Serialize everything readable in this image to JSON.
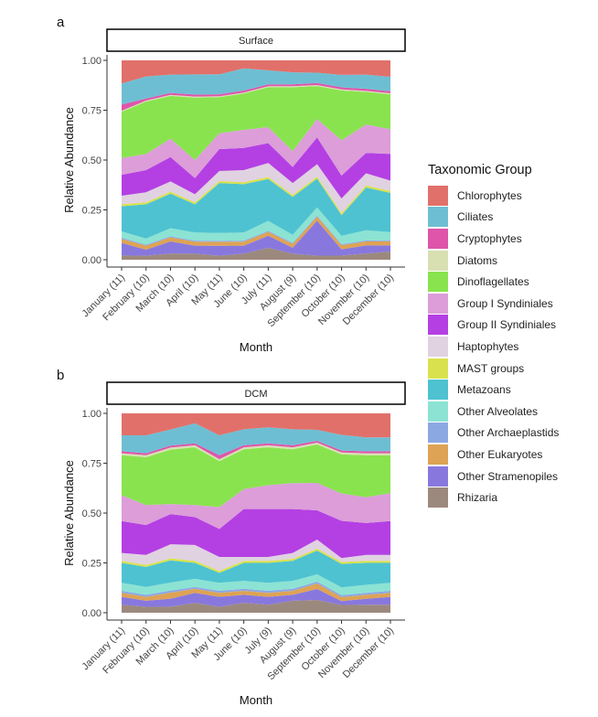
{
  "chart_data": [
    {
      "type": "area",
      "panel_label": "a",
      "strip_title": "Surface",
      "xlabel": "Month",
      "ylabel": "Relative Abundance",
      "ylim": [
        0,
        1
      ],
      "yticks": [
        "0.00",
        "0.25",
        "0.50",
        "0.75",
        "1.00"
      ],
      "categories": [
        "January (11)",
        "February (10)",
        "March (10)",
        "April (10)",
        "May (11)",
        "June (10)",
        "July (11)",
        "August (9)",
        "September (10)",
        "October (10)",
        "November (10)",
        "December (10)"
      ],
      "series": [
        {
          "name": "Rhizaria",
          "values": [
            0.02,
            0.02,
            0.03,
            0.03,
            0.02,
            0.03,
            0.06,
            0.03,
            0.02,
            0.02,
            0.03,
            0.04
          ]
        },
        {
          "name": "Other Stramenopiles",
          "values": [
            0.06,
            0.03,
            0.06,
            0.04,
            0.05,
            0.04,
            0.06,
            0.03,
            0.17,
            0.03,
            0.04,
            0.03
          ]
        },
        {
          "name": "Other Eukaryotes",
          "values": [
            0.02,
            0.02,
            0.02,
            0.02,
            0.02,
            0.02,
            0.02,
            0.02,
            0.02,
            0.02,
            0.02,
            0.02
          ]
        },
        {
          "name": "Other Archaeplastids",
          "values": [
            0.005,
            0.005,
            0.005,
            0.005,
            0.005,
            0.005,
            0.005,
            0.005,
            0.005,
            0.005,
            0.005,
            0.005
          ]
        },
        {
          "name": "Other Alveolates",
          "values": [
            0.03,
            0.03,
            0.04,
            0.04,
            0.04,
            0.04,
            0.05,
            0.04,
            0.04,
            0.04,
            0.05,
            0.04
          ]
        },
        {
          "name": "Metazoans",
          "values": [
            0.12,
            0.17,
            0.17,
            0.14,
            0.25,
            0.24,
            0.21,
            0.19,
            0.14,
            0.1,
            0.21,
            0.19
          ]
        },
        {
          "name": "MAST groups",
          "values": [
            0.01,
            0.01,
            0.01,
            0.01,
            0.01,
            0.01,
            0.01,
            0.01,
            0.01,
            0.01,
            0.01,
            0.01
          ]
        },
        {
          "name": "Haptophytes",
          "values": [
            0.04,
            0.05,
            0.05,
            0.04,
            0.05,
            0.06,
            0.07,
            0.06,
            0.06,
            0.07,
            0.06,
            0.05
          ]
        },
        {
          "name": "Group II Syndiniales",
          "values": [
            0.1,
            0.11,
            0.12,
            0.08,
            0.11,
            0.11,
            0.1,
            0.08,
            0.13,
            0.11,
            0.1,
            0.13
          ]
        },
        {
          "name": "Group I Syndiniales",
          "values": [
            0.08,
            0.08,
            0.09,
            0.09,
            0.08,
            0.09,
            0.08,
            0.08,
            0.09,
            0.17,
            0.14,
            0.12
          ]
        },
        {
          "name": "Dinoflagellates",
          "values": [
            0.22,
            0.26,
            0.21,
            0.31,
            0.18,
            0.18,
            0.2,
            0.32,
            0.16,
            0.24,
            0.16,
            0.17
          ]
        },
        {
          "name": "Diatoms",
          "values": [
            0.005,
            0.005,
            0.005,
            0.005,
            0.005,
            0.005,
            0.005,
            0.005,
            0.005,
            0.005,
            0.005,
            0.005
          ]
        },
        {
          "name": "Cryptophytes",
          "values": [
            0.03,
            0.01,
            0.01,
            0.01,
            0.01,
            0.01,
            0.01,
            0.01,
            0.01,
            0.01,
            0.01,
            0.01
          ]
        },
        {
          "name": "Ciliates",
          "values": [
            0.1,
            0.11,
            0.09,
            0.1,
            0.1,
            0.11,
            0.07,
            0.06,
            0.05,
            0.06,
            0.07,
            0.07
          ]
        },
        {
          "name": "Chlorophytes",
          "values": [
            0.11,
            0.08,
            0.07,
            0.07,
            0.07,
            0.04,
            0.05,
            0.06,
            0.06,
            0.07,
            0.07,
            0.08
          ]
        }
      ]
    },
    {
      "type": "area",
      "panel_label": "b",
      "strip_title": "DCM",
      "xlabel": "Month",
      "ylabel": "Relative Abundance",
      "ylim": [
        0,
        1
      ],
      "yticks": [
        "0.00",
        "0.25",
        "0.50",
        "0.75",
        "1.00"
      ],
      "categories": [
        "January (11)",
        "February (10)",
        "March (10)",
        "April (10)",
        "May (11)",
        "June (10)",
        "July (9)",
        "August (9)",
        "September (10)",
        "October (10)",
        "November (10)",
        "December (10)"
      ],
      "series": [
        {
          "name": "Rhizaria",
          "values": [
            0.04,
            0.03,
            0.03,
            0.05,
            0.03,
            0.05,
            0.04,
            0.06,
            0.07,
            0.04,
            0.04,
            0.04
          ]
        },
        {
          "name": "Other Stramenopiles",
          "values": [
            0.04,
            0.03,
            0.04,
            0.05,
            0.05,
            0.04,
            0.04,
            0.03,
            0.06,
            0.02,
            0.03,
            0.04
          ]
        },
        {
          "name": "Other Eukaryotes",
          "values": [
            0.02,
            0.02,
            0.03,
            0.02,
            0.02,
            0.02,
            0.02,
            0.02,
            0.03,
            0.02,
            0.02,
            0.02
          ]
        },
        {
          "name": "Other Archaeplastids",
          "values": [
            0.01,
            0.01,
            0.01,
            0.01,
            0.01,
            0.01,
            0.01,
            0.01,
            0.01,
            0.01,
            0.01,
            0.01
          ]
        },
        {
          "name": "Other Alveolates",
          "values": [
            0.04,
            0.04,
            0.04,
            0.04,
            0.04,
            0.04,
            0.04,
            0.04,
            0.04,
            0.04,
            0.04,
            0.04
          ]
        },
        {
          "name": "Metazoans",
          "values": [
            0.1,
            0.1,
            0.11,
            0.08,
            0.05,
            0.09,
            0.1,
            0.1,
            0.13,
            0.12,
            0.11,
            0.1
          ]
        },
        {
          "name": "MAST groups",
          "values": [
            0.01,
            0.01,
            0.01,
            0.01,
            0.01,
            0.01,
            0.01,
            0.01,
            0.01,
            0.01,
            0.01,
            0.01
          ]
        },
        {
          "name": "Haptophytes",
          "values": [
            0.04,
            0.05,
            0.07,
            0.08,
            0.07,
            0.02,
            0.02,
            0.03,
            0.05,
            0.02,
            0.03,
            0.03
          ]
        },
        {
          "name": "Group II Syndiniales",
          "values": [
            0.16,
            0.15,
            0.15,
            0.14,
            0.14,
            0.24,
            0.24,
            0.22,
            0.16,
            0.19,
            0.16,
            0.17
          ]
        },
        {
          "name": "Group I Syndiniales",
          "values": [
            0.13,
            0.1,
            0.05,
            0.06,
            0.11,
            0.1,
            0.12,
            0.13,
            0.15,
            0.14,
            0.13,
            0.14
          ]
        },
        {
          "name": "Dinoflagellates",
          "values": [
            0.2,
            0.24,
            0.27,
            0.29,
            0.23,
            0.2,
            0.19,
            0.17,
            0.21,
            0.2,
            0.21,
            0.19
          ]
        },
        {
          "name": "Diatoms",
          "values": [
            0.01,
            0.01,
            0.01,
            0.01,
            0.01,
            0.01,
            0.01,
            0.01,
            0.01,
            0.01,
            0.01,
            0.01
          ]
        },
        {
          "name": "Cryptophytes",
          "values": [
            0.01,
            0.01,
            0.01,
            0.01,
            0.02,
            0.01,
            0.01,
            0.01,
            0.01,
            0.01,
            0.01,
            0.01
          ]
        },
        {
          "name": "Ciliates",
          "values": [
            0.08,
            0.09,
            0.08,
            0.1,
            0.1,
            0.08,
            0.08,
            0.08,
            0.06,
            0.08,
            0.07,
            0.07
          ]
        },
        {
          "name": "Chlorophytes",
          "values": [
            0.11,
            0.11,
            0.08,
            0.05,
            0.11,
            0.08,
            0.07,
            0.08,
            0.09,
            0.11,
            0.12,
            0.12
          ]
        }
      ]
    }
  ],
  "legend": {
    "title": "Taxonomic Group",
    "items": [
      {
        "name": "Chlorophytes",
        "color": "#E1706A"
      },
      {
        "name": "Ciliates",
        "color": "#6EBED3"
      },
      {
        "name": "Cryptophytes",
        "color": "#DE55AA"
      },
      {
        "name": "Diatoms",
        "color": "#D8E0B2"
      },
      {
        "name": "Dinoflagellates",
        "color": "#89E34E"
      },
      {
        "name": "Group I Syndiniales",
        "color": "#DC9DD9"
      },
      {
        "name": "Group II Syndiniales",
        "color": "#B440E3"
      },
      {
        "name": "Haptophytes",
        "color": "#E0D2E1"
      },
      {
        "name": "MAST groups",
        "color": "#D9E14E"
      },
      {
        "name": "Metazoans",
        "color": "#4EC2D1"
      },
      {
        "name": "Other Alveolates",
        "color": "#8CE3D3"
      },
      {
        "name": "Other Archaeplastids",
        "color": "#8CA8E3"
      },
      {
        "name": "Other Eukaryotes",
        "color": "#DEA354"
      },
      {
        "name": "Other Stramenopiles",
        "color": "#8878DE"
      },
      {
        "name": "Rhizaria",
        "color": "#9C897E"
      }
    ]
  }
}
